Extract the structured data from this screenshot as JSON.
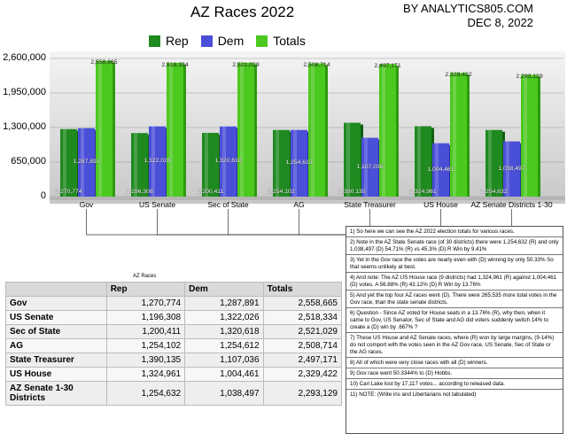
{
  "header": {
    "title": "AZ Races 2022",
    "byline": "BY ANALYTICS805.COM",
    "date": "DEC 8, 2022"
  },
  "colors": {
    "rep": "#1f8a1f",
    "dem": "#4a4fd8",
    "totals": "#4cc91f"
  },
  "chart_data": {
    "type": "bar",
    "categories": [
      "Gov",
      "US Senate",
      "Sec of State",
      "AG",
      "State Treasurer",
      "US House",
      "AZ Senate Districts 1-30"
    ],
    "series": [
      {
        "name": "Rep",
        "values": [
          1270774,
          1196308,
          1200411,
          1254102,
          1390135,
          1324961,
          1254632
        ]
      },
      {
        "name": "Dem",
        "values": [
          1287891,
          1322026,
          1320618,
          1254612,
          1107036,
          1004461,
          1038497
        ]
      },
      {
        "name": "Totals",
        "values": [
          2558665,
          2518334,
          2521029,
          2508714,
          2497171,
          2329422,
          2293129
        ]
      }
    ],
    "rep_labels": [
      "1,270,774",
      "1,196,308",
      "1,200,411",
      "1,254,102",
      "1,390,135",
      "1,324,961",
      "1,254,632"
    ],
    "dem_labels": [
      "1,287,891",
      "1,322,026",
      "1,320,618",
      "1,254,612",
      "1,107,036",
      "1,004,461",
      "1,038,497"
    ],
    "total_labels": [
      "2,558,665",
      "2,518,334",
      "2,521,029",
      "2,508,714",
      "2,497,171",
      "2,329,422",
      "2,293,129"
    ],
    "yticks": [
      0,
      650000,
      1300000,
      1950000,
      2600000
    ],
    "ytick_labels": [
      "0",
      "650,000",
      "1,300,000",
      "1,950,000",
      "2,600,000"
    ],
    "ylim": [
      0,
      2600000
    ],
    "legend": "top",
    "grid": true
  },
  "table": {
    "caption": "AZ Races",
    "headers": [
      "",
      "Rep",
      "Dem",
      "Totals"
    ],
    "rows": [
      [
        "Gov",
        "1,270,774",
        "1,287,891",
        "2,558,665"
      ],
      [
        "US Senate",
        "1,196,308",
        "1,322,026",
        "2,518,334"
      ],
      [
        "Sec of State",
        "1,200,411",
        "1,320,618",
        "2,521,029"
      ],
      [
        "AG",
        "1,254,102",
        "1,254,612",
        "2,508,714"
      ],
      [
        "State Treasurer",
        "1,390,135",
        "1,107,036",
        "2,497,171"
      ],
      [
        "US House",
        "1,324,961",
        "1,004,461",
        "2,329,422"
      ],
      [
        "AZ Senate 1-30 Districts",
        "1,254,632",
        "1,038,497",
        "2,293,129"
      ]
    ]
  },
  "notes": [
    "1)   So here we can see the AZ 2022 election totals for various races.",
    "2)   Note in the AZ State Senate race (of 30 districts) there were 1,254,632 (R) and only 1,038,497 (D)    54.71% (R) vs 45.3% (D)  R Win by 9.41%",
    "3)   Yet in the Gov race the votes are nearly even with (D) winning by only 50.33%          So that seems unlikely at best.",
    "4)   And note: The AZ US House race (9 districts) had 1,324,961 (R) against 1,004,461 (D) votes.      A 56.88% (R) 43.12% (D)   R Win by 13.76%",
    "5)   And yet the top four AZ races went (D).   There were 265,535 more total votes in the Gov race, than the state senate districts.",
    "6)   Question - Since AZ voted for House seats in a 13.76% (R), why then, when it came to Gov, US Senator, Sec of State and AG did voters suddenly switch 14% to create a (D) win by .667% ?",
    "7)   These US House and AZ Senate races, where (R) won by large margins, (9-14%) do not comport with the votes seen in the AZ Gov race,  US Senate, Sec of State or the AG races.",
    "8)   All of which were very close races with all (D) winners.",
    "9)   Gov race went 50.3344% to (D) Hobbs.",
    "10) Cari Lake lost by 17,117 votes... according to released data.",
    "11) NOTE: (Write ins and Libertarians not tabulated)"
  ]
}
